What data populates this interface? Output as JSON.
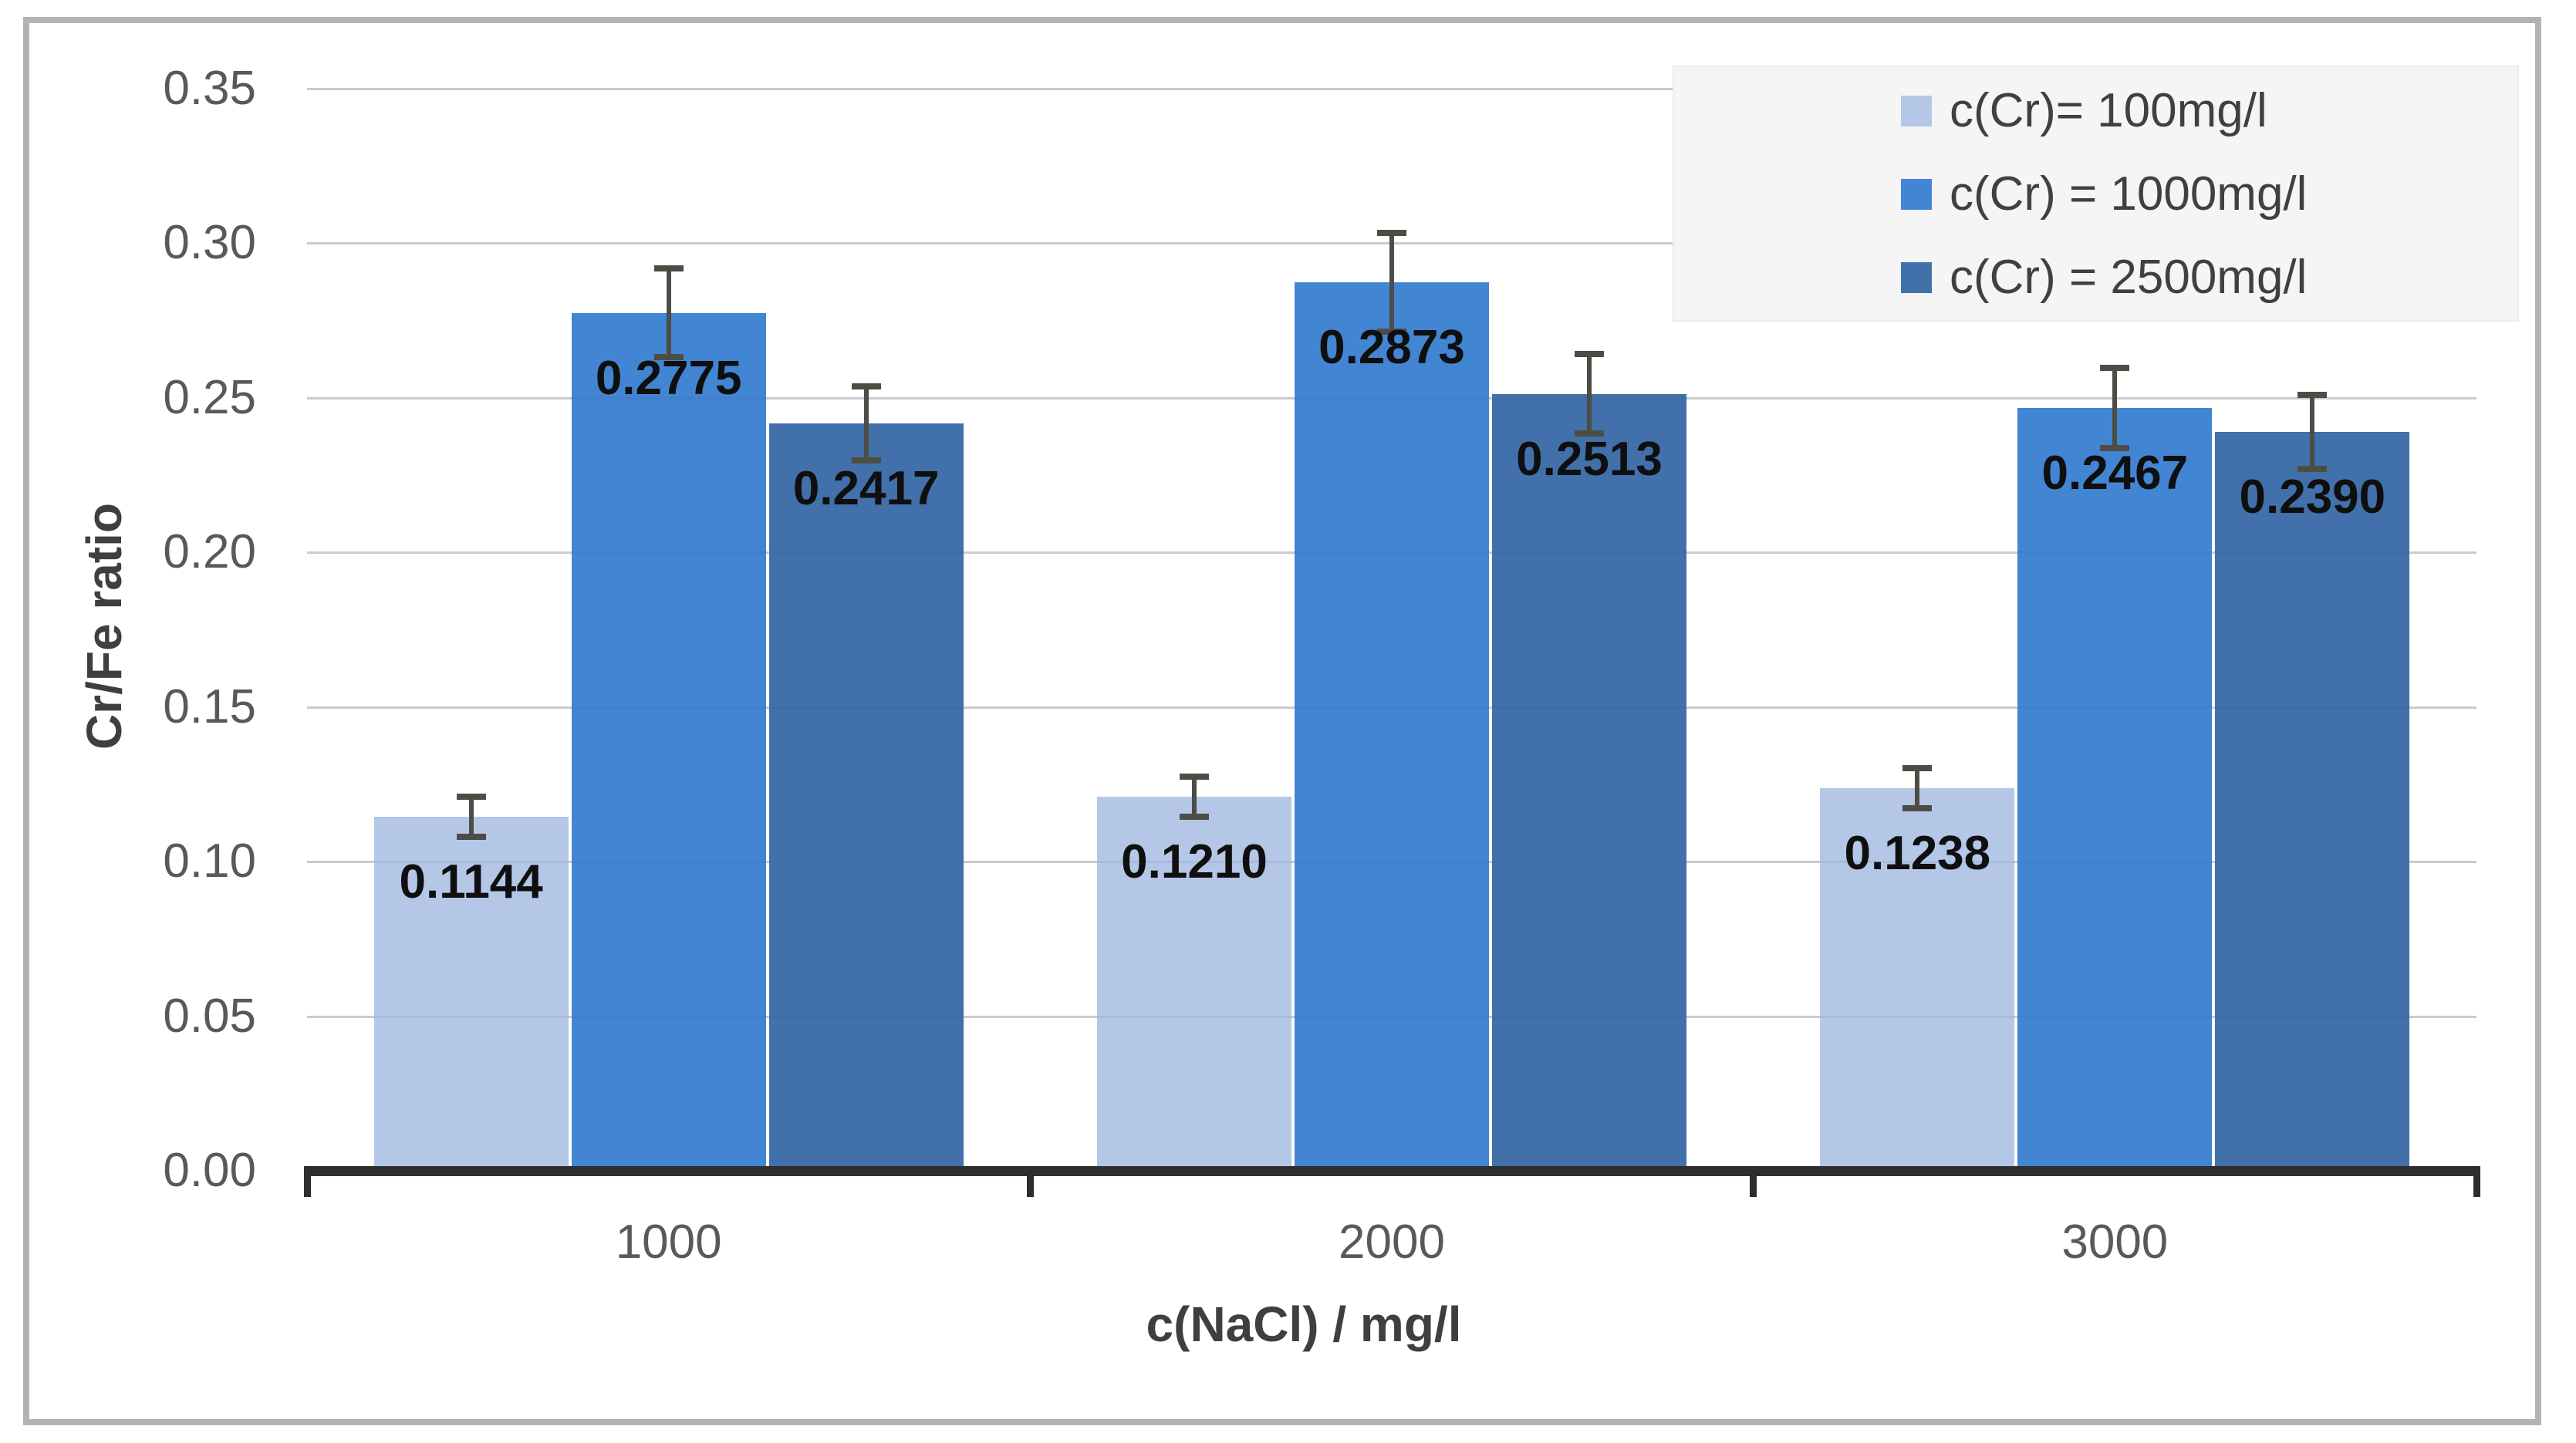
{
  "chart_data": {
    "type": "bar",
    "categories": [
      "1000",
      "2000",
      "3000"
    ],
    "series": [
      {
        "name": "c(Cr)= 100mg/l",
        "color": "#b4c7e7",
        "values": [
          0.1144,
          0.121,
          0.1238
        ],
        "errors": [
          0.0065,
          0.0065,
          0.0065
        ],
        "data_labels": [
          "0.1144",
          "0.1210",
          "0.1238"
        ]
      },
      {
        "name": "c(Cr) = 1000mg/l",
        "color": "#4285d3",
        "values": [
          0.2775,
          0.2873,
          0.2467
        ],
        "errors": [
          0.0144,
          0.016,
          0.013
        ],
        "data_labels": [
          "0.2775",
          "0.2873",
          "0.2467"
        ]
      },
      {
        "name": "c(Cr) = 2500mg/l",
        "color": "#4170aa",
        "values": [
          0.2417,
          0.2513,
          0.239
        ],
        "errors": [
          0.012,
          0.0128,
          0.012
        ],
        "data_labels": [
          "0.2417",
          "0.2513",
          "0.2390"
        ]
      }
    ],
    "xlabel": "c(NaCl) / mg/l",
    "ylabel": "Cr/Fe ratio",
    "ylim": [
      0,
      0.35
    ],
    "ytick_step": 0.05,
    "ytick_labels": [
      "0.00",
      "0.05",
      "0.10",
      "0.15",
      "0.20",
      "0.25",
      "0.30",
      "0.35"
    ],
    "grid": true,
    "legend_position": "top-right",
    "error_bars": true
  },
  "colors": {
    "grid": "#d9d9d9",
    "axis_line": "#2e2e2e",
    "tick_label": "#595959",
    "data_label": "#0f0f0f",
    "error_bar": "#4d4d45",
    "legend_background": "#f5f5f5",
    "frame_border": "#b3b3b3"
  }
}
